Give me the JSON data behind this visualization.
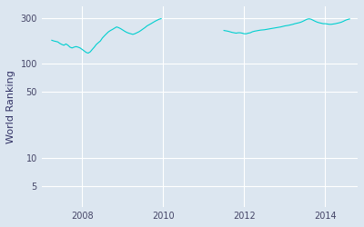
{
  "title": "",
  "ylabel": "World Ranking",
  "line_color": "#00cfcf",
  "bg_color": "#dce6f0",
  "fig_bg_color": "#dce6f0",
  "yticks": [
    5,
    10,
    50,
    100,
    300
  ],
  "ytick_labels": [
    "5",
    "10",
    "50",
    "100",
    "300"
  ],
  "xlim_start": 2007.0,
  "xlim_end": 2014.8,
  "ylim_bottom": 3,
  "ylim_top": 400,
  "segment1": {
    "points": [
      [
        2007.25,
        175
      ],
      [
        2007.3,
        172
      ],
      [
        2007.35,
        170
      ],
      [
        2007.4,
        168
      ],
      [
        2007.45,
        162
      ],
      [
        2007.5,
        158
      ],
      [
        2007.55,
        155
      ],
      [
        2007.6,
        160
      ],
      [
        2007.65,
        155
      ],
      [
        2007.7,
        148
      ],
      [
        2007.75,
        145
      ],
      [
        2007.8,
        148
      ],
      [
        2007.85,
        150
      ],
      [
        2007.9,
        148
      ],
      [
        2007.95,
        145
      ],
      [
        2008.0,
        140
      ],
      [
        2008.05,
        135
      ],
      [
        2008.1,
        130
      ],
      [
        2008.15,
        128
      ],
      [
        2008.2,
        132
      ],
      [
        2008.25,
        140
      ],
      [
        2008.3,
        148
      ],
      [
        2008.35,
        158
      ],
      [
        2008.4,
        165
      ],
      [
        2008.45,
        172
      ],
      [
        2008.5,
        185
      ],
      [
        2008.55,
        195
      ],
      [
        2008.6,
        205
      ],
      [
        2008.65,
        215
      ],
      [
        2008.7,
        222
      ],
      [
        2008.75,
        228
      ],
      [
        2008.8,
        235
      ],
      [
        2008.85,
        242
      ],
      [
        2008.9,
        238
      ],
      [
        2008.95,
        232
      ],
      [
        2009.0,
        225
      ],
      [
        2009.05,
        218
      ],
      [
        2009.1,
        212
      ],
      [
        2009.15,
        208
      ],
      [
        2009.2,
        205
      ],
      [
        2009.25,
        202
      ],
      [
        2009.3,
        205
      ],
      [
        2009.35,
        210
      ],
      [
        2009.4,
        215
      ],
      [
        2009.45,
        222
      ],
      [
        2009.5,
        230
      ],
      [
        2009.55,
        238
      ],
      [
        2009.6,
        248
      ],
      [
        2009.65,
        255
      ],
      [
        2009.7,
        262
      ],
      [
        2009.75,
        270
      ],
      [
        2009.8,
        278
      ],
      [
        2009.85,
        285
      ],
      [
        2009.9,
        292
      ],
      [
        2009.95,
        296
      ]
    ]
  },
  "segment2": {
    "points": [
      [
        2011.5,
        222
      ],
      [
        2011.55,
        220
      ],
      [
        2011.6,
        218
      ],
      [
        2011.65,
        215
      ],
      [
        2011.7,
        212
      ],
      [
        2011.75,
        210
      ],
      [
        2011.8,
        208
      ],
      [
        2011.85,
        210
      ],
      [
        2011.9,
        210
      ],
      [
        2011.95,
        208
      ],
      [
        2012.0,
        205
      ],
      [
        2012.05,
        205
      ],
      [
        2012.1,
        208
      ],
      [
        2012.15,
        210
      ],
      [
        2012.2,
        215
      ],
      [
        2012.25,
        218
      ],
      [
        2012.3,
        220
      ],
      [
        2012.35,
        222
      ],
      [
        2012.4,
        224
      ],
      [
        2012.45,
        225
      ],
      [
        2012.5,
        226
      ],
      [
        2012.55,
        228
      ],
      [
        2012.6,
        230
      ],
      [
        2012.65,
        232
      ],
      [
        2012.7,
        234
      ],
      [
        2012.75,
        236
      ],
      [
        2012.8,
        238
      ],
      [
        2012.85,
        240
      ],
      [
        2012.9,
        242
      ],
      [
        2012.95,
        245
      ],
      [
        2013.0,
        248
      ],
      [
        2013.05,
        250
      ],
      [
        2013.1,
        252
      ],
      [
        2013.15,
        255
      ],
      [
        2013.2,
        258
      ],
      [
        2013.25,
        262
      ],
      [
        2013.3,
        265
      ],
      [
        2013.35,
        268
      ],
      [
        2013.4,
        272
      ],
      [
        2013.45,
        278
      ],
      [
        2013.5,
        285
      ],
      [
        2013.55,
        292
      ],
      [
        2013.6,
        295
      ],
      [
        2013.65,
        292
      ],
      [
        2013.7,
        285
      ],
      [
        2013.75,
        278
      ],
      [
        2013.8,
        272
      ],
      [
        2013.85,
        268
      ],
      [
        2013.9,
        265
      ],
      [
        2013.95,
        262
      ],
      [
        2014.0,
        262
      ],
      [
        2014.05,
        260
      ],
      [
        2014.1,
        258
      ],
      [
        2014.15,
        258
      ],
      [
        2014.2,
        260
      ],
      [
        2014.25,
        262
      ],
      [
        2014.3,
        265
      ],
      [
        2014.35,
        268
      ],
      [
        2014.4,
        272
      ],
      [
        2014.45,
        278
      ],
      [
        2014.5,
        285
      ],
      [
        2014.55,
        290
      ],
      [
        2014.6,
        294
      ]
    ]
  }
}
